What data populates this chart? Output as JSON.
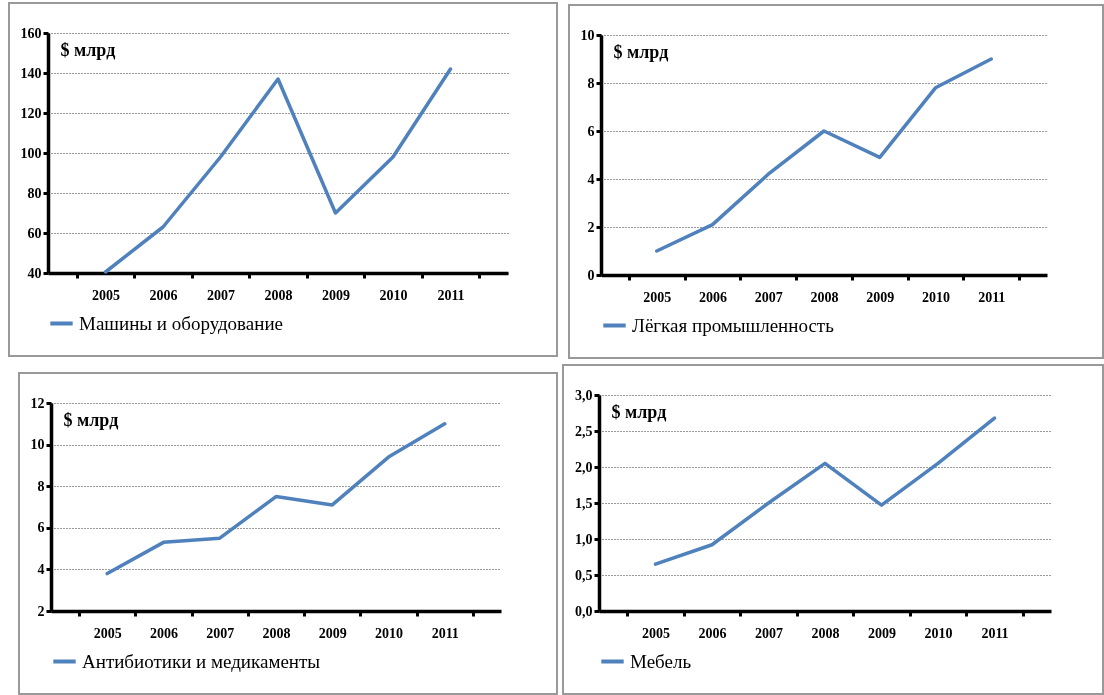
{
  "chart_data": [
    {
      "type": "line",
      "ylabel": "$ млрд",
      "categories": [
        "2005",
        "2006",
        "2007",
        "2008",
        "2009",
        "2010",
        "2011"
      ],
      "series": [
        {
          "name": "Машины и оборудование",
          "color": "#4f81bd",
          "values": [
            40.5,
            63,
            98,
            137,
            70,
            98,
            142
          ]
        }
      ],
      "ylim": [
        40,
        160
      ],
      "yticks": [
        40,
        60,
        80,
        100,
        120,
        140,
        160
      ],
      "grid": "y",
      "legend": "bottom"
    },
    {
      "type": "line",
      "ylabel": "$ млрд",
      "categories": [
        "2005",
        "2006",
        "2007",
        "2008",
        "2009",
        "2010",
        "2011"
      ],
      "series": [
        {
          "name": "Лёгкая промышленность",
          "color": "#4f81bd",
          "values": [
            1.0,
            2.1,
            4.2,
            6.0,
            4.9,
            7.8,
            9.0
          ]
        }
      ],
      "ylim": [
        0,
        10
      ],
      "yticks": [
        0,
        2,
        4,
        6,
        8,
        10
      ],
      "grid": "y",
      "legend": "bottom"
    },
    {
      "type": "line",
      "ylabel": "$ млрд",
      "categories": [
        "2005",
        "2006",
        "2007",
        "2008",
        "2009",
        "2010",
        "2011"
      ],
      "series": [
        {
          "name": "Антибиотики и медикаменты",
          "color": "#4f81bd",
          "values": [
            3.8,
            5.3,
            5.5,
            7.5,
            7.1,
            9.4,
            11.0
          ]
        }
      ],
      "ylim": [
        2,
        12
      ],
      "yticks": [
        2,
        4,
        6,
        8,
        10,
        12
      ],
      "grid": "y",
      "legend": "bottom"
    },
    {
      "type": "line",
      "ylabel": "$ млрд",
      "categories": [
        "2005",
        "2006",
        "2007",
        "2008",
        "2009",
        "2010",
        "2011"
      ],
      "series": [
        {
          "name": "Мебель",
          "color": "#4f81bd",
          "values": [
            0.65,
            0.92,
            1.5,
            2.05,
            1.47,
            2.05,
            2.68
          ]
        }
      ],
      "ylim": [
        0,
        3
      ],
      "yticks": [
        {
          "value": 0,
          "label": "0,0"
        },
        {
          "value": 0.5,
          "label": "0,5"
        },
        {
          "value": 1,
          "label": "1,0"
        },
        {
          "value": 1.5,
          "label": "1,5"
        },
        {
          "value": 2,
          "label": "2,0"
        },
        {
          "value": 2.5,
          "label": "2,5"
        },
        {
          "value": 3,
          "label": "3,0"
        }
      ],
      "grid": "y",
      "legend": "bottom"
    }
  ]
}
